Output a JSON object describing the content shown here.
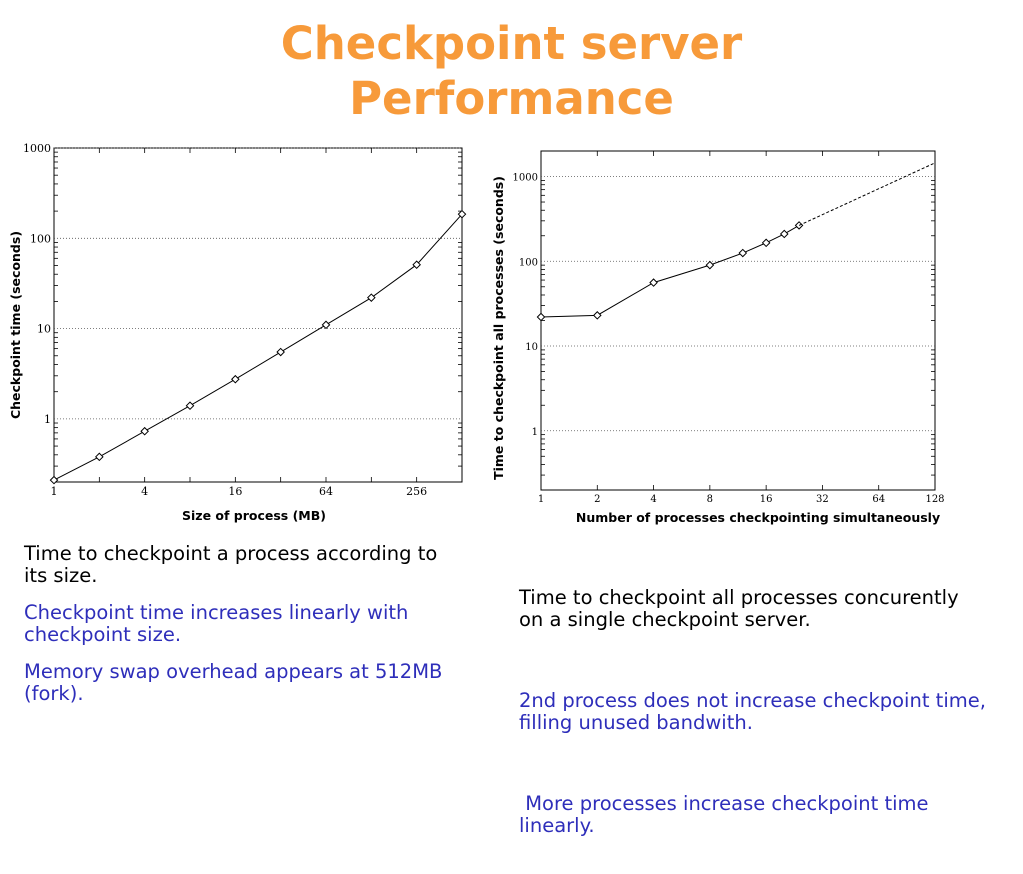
{
  "slide": {
    "title_line1": "Checkpoint server",
    "title_line2": "Performance"
  },
  "colors": {
    "title": "#f79a3a",
    "body_text": "#000000",
    "highlight_text": "#2e2eba"
  },
  "chart_data": [
    {
      "type": "line",
      "xlabel": "Size of process (MB)",
      "ylabel": "Checkpoint time (seconds)",
      "x_scale": "log2",
      "y_scale": "log10",
      "xlim": [
        1,
        512
      ],
      "ylim": [
        0.2,
        1000
      ],
      "x_ticks": [
        "1",
        "4",
        "16",
        "64",
        "256"
      ],
      "y_ticks": [
        "1",
        "10",
        "100",
        "1000"
      ],
      "grid": "horizontal dotted",
      "series": [
        {
          "marker": "diamond",
          "x": [
            1,
            2,
            4,
            8,
            16,
            32,
            64,
            128,
            256,
            512
          ],
          "y": [
            0.21,
            0.38,
            0.73,
            1.4,
            2.75,
            5.5,
            11,
            22,
            51,
            185
          ]
        }
      ]
    },
    {
      "type": "line",
      "xlabel": "Number of processes checkpointing simultaneously",
      "ylabel": "Time to checkpoint all processes (seconds)",
      "x_scale": "log2",
      "y_scale": "log10",
      "xlim": [
        1,
        128
      ],
      "ylim": [
        0.2,
        2000
      ],
      "x_ticks": [
        "1",
        "2",
        "4",
        "8",
        "16",
        "32",
        "64",
        "128"
      ],
      "y_ticks": [
        "1",
        "10",
        "100",
        "1000"
      ],
      "grid": "horizontal dotted",
      "series": [
        {
          "marker": "diamond",
          "x": [
            1,
            2,
            4,
            8,
            12,
            16,
            20,
            24
          ],
          "y": [
            22,
            23,
            56,
            90,
            125,
            165,
            210,
            265
          ]
        },
        {
          "style": "dashed",
          "x": [
            24,
            128
          ],
          "y": [
            265,
            1450
          ]
        }
      ]
    }
  ],
  "left_text": {
    "p1": "Time to checkpoint a process according to its size.",
    "p2": "Checkpoint time increases linearly with checkpoint size.",
    "p3": "Memory swap overhead appears at 512MB (fork)."
  },
  "right_text": {
    "p1": "Time to checkpoint all processes concurently on a single checkpoint server.",
    "p2": "2nd process does not increase checkpoint time, filling unused bandwith.",
    "p3": " More processes increase checkpoint time linearly."
  }
}
